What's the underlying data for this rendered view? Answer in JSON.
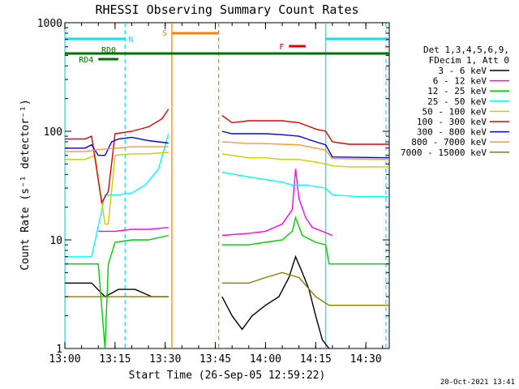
{
  "chart_data": {
    "type": "line",
    "title": "RHESSI Observing Summary Count Rates",
    "xlabel": "Start Time (26-Sep-05 12:59:22)",
    "ylabel": "Count Rate (s⁻¹ detector⁻¹)",
    "y_scale": "log",
    "ylim": [
      1,
      1000
    ],
    "xlim": [
      "13:00",
      "14:37"
    ],
    "x_ticks": [
      "13:00",
      "13:15",
      "13:30",
      "13:45",
      "14:00",
      "14:15",
      "14:30"
    ],
    "y_ticks": [
      "1",
      "10",
      "100",
      "1000"
    ],
    "footer_date": "20-Oct-2021 13:41",
    "legend_header": [
      "Det 1,3,4,5,6,9,",
      "FDecim 1, Att 0"
    ],
    "annotations": {
      "N": {
        "label": "N",
        "color": "#00e5ff",
        "segments": [
          [
            "13:00",
            "13:18"
          ],
          [
            "14:18",
            "14:37"
          ]
        ]
      },
      "S": {
        "label": "S",
        "color": "#ff7f00",
        "segments": [
          [
            "13:32",
            "13:46"
          ]
        ]
      },
      "F": {
        "label": "F",
        "color": "#e00000",
        "segments": [
          [
            "14:07",
            "14:12"
          ]
        ]
      },
      "RD0": {
        "label": "RD0",
        "color": "#007000",
        "segments": [
          [
            "13:00",
            "14:37"
          ]
        ]
      },
      "RD4": {
        "label": "RD4",
        "color": "#007000",
        "segments": [
          [
            "13:10",
            "13:16"
          ]
        ]
      }
    },
    "vlines": [
      {
        "time": "13:00",
        "color": "#00e5ff",
        "style": "solid"
      },
      {
        "time": "13:18",
        "color": "#00e5ff",
        "style": "dashed"
      },
      {
        "time": "13:32",
        "color": "#ff7f00",
        "style": "solid"
      },
      {
        "time": "13:46",
        "color": "#ff7f00",
        "style": "dashed"
      },
      {
        "time": "14:18",
        "color": "#00e5ff",
        "style": "solid"
      },
      {
        "time": "14:36",
        "color": "#00e5ff",
        "style": "dashed"
      }
    ],
    "series": [
      {
        "name": "3 - 6 keV",
        "color": "#000000",
        "points": [
          [
            "13:00",
            4
          ],
          [
            "13:08",
            4
          ],
          [
            "13:12",
            3
          ],
          [
            "13:16",
            3.5
          ],
          [
            "13:21",
            3.5
          ],
          [
            "13:26",
            3
          ],
          [
            "13:31",
            3
          ],
          null,
          [
            "13:47",
            3
          ],
          [
            "13:50",
            2
          ],
          [
            "13:53",
            1.5
          ],
          [
            "13:56",
            2
          ],
          [
            "14:00",
            2.5
          ],
          [
            "14:04",
            3
          ],
          [
            "14:07",
            4.5
          ],
          [
            "14:09",
            7
          ],
          [
            "14:11",
            5
          ],
          [
            "14:13",
            3.5
          ],
          [
            "14:15",
            2
          ],
          [
            "14:17",
            1.2
          ],
          [
            "14:19",
            1
          ]
        ]
      },
      {
        "name": "6 - 12 keV",
        "color": "#ff00ff",
        "points": [
          [
            "13:10",
            12
          ],
          [
            "13:15",
            12
          ],
          [
            "13:20",
            12.5
          ],
          [
            "13:25",
            12.5
          ],
          [
            "13:31",
            13
          ],
          null,
          [
            "13:47",
            11
          ],
          [
            "13:55",
            11.5
          ],
          [
            "14:00",
            12
          ],
          [
            "14:05",
            14
          ],
          [
            "14:08",
            19
          ],
          [
            "14:09",
            45
          ],
          [
            "14:10",
            24
          ],
          [
            "14:12",
            16
          ],
          [
            "14:14",
            13
          ],
          [
            "14:17",
            12
          ],
          [
            "14:20",
            11
          ]
        ]
      },
      {
        "name": "12 - 25 keV",
        "color": "#00cc00",
        "points": [
          [
            "13:00",
            6
          ],
          [
            "13:10",
            6
          ],
          [
            "13:12",
            1
          ],
          [
            "13:13",
            6
          ],
          [
            "13:15",
            9.5
          ],
          [
            "13:20",
            10
          ],
          [
            "13:25",
            10
          ],
          [
            "13:31",
            11
          ],
          null,
          [
            "13:47",
            9
          ],
          [
            "13:55",
            9
          ],
          [
            "14:00",
            9.5
          ],
          [
            "14:05",
            10
          ],
          [
            "14:08",
            12
          ],
          [
            "14:09",
            16
          ],
          [
            "14:11",
            11
          ],
          [
            "14:15",
            9.5
          ],
          [
            "14:18",
            9
          ],
          [
            "14:19",
            6
          ],
          [
            "14:25",
            6
          ],
          [
            "14:32",
            6
          ],
          [
            "14:37",
            6
          ]
        ]
      },
      {
        "name": "25 - 50 keV",
        "color": "#00ffff",
        "points": [
          [
            "13:00",
            7
          ],
          [
            "13:08",
            7
          ],
          [
            "13:12",
            26
          ],
          [
            "13:16",
            26
          ],
          [
            "13:20",
            27
          ],
          [
            "13:24",
            32
          ],
          [
            "13:28",
            45
          ],
          [
            "13:31",
            95
          ],
          null,
          [
            "13:47",
            42
          ],
          [
            "13:55",
            38
          ],
          [
            "14:00",
            36
          ],
          [
            "14:05",
            34
          ],
          [
            "14:08",
            32
          ],
          [
            "14:12",
            32
          ],
          [
            "14:18",
            30
          ],
          [
            "14:20",
            26
          ],
          [
            "14:28",
            25
          ],
          [
            "14:37",
            25
          ]
        ]
      },
      {
        "name": "50 - 100 keV",
        "color": "#cccc00",
        "points": [
          [
            "13:00",
            55
          ],
          [
            "13:06",
            55
          ],
          [
            "13:09",
            60
          ],
          [
            "13:12",
            14
          ],
          [
            "13:13",
            14
          ],
          [
            "13:15",
            60
          ],
          [
            "13:20",
            62
          ],
          [
            "13:25",
            62
          ],
          [
            "13:31",
            64
          ],
          null,
          [
            "13:47",
            62
          ],
          [
            "13:55",
            57
          ],
          [
            "14:00",
            57
          ],
          [
            "14:05",
            55
          ],
          [
            "14:10",
            55
          ],
          [
            "14:15",
            52
          ],
          [
            "14:18",
            50
          ],
          [
            "14:20",
            48
          ],
          [
            "14:25",
            47
          ],
          [
            "14:37",
            47
          ]
        ]
      },
      {
        "name": "100 - 300 keV",
        "color": "#e00000",
        "points": [
          [
            "13:00",
            85
          ],
          [
            "13:06",
            85
          ],
          [
            "13:08",
            90
          ],
          [
            "13:11",
            22
          ],
          [
            "13:13",
            28
          ],
          [
            "13:15",
            95
          ],
          [
            "13:20",
            100
          ],
          [
            "13:25",
            110
          ],
          [
            "13:29",
            130
          ],
          [
            "13:31",
            160
          ],
          null,
          [
            "13:47",
            140
          ],
          [
            "13:50",
            120
          ],
          [
            "13:55",
            125
          ],
          [
            "14:00",
            125
          ],
          [
            "14:05",
            125
          ],
          [
            "14:10",
            120
          ],
          [
            "14:15",
            105
          ],
          [
            "14:18",
            100
          ],
          [
            "14:20",
            80
          ],
          [
            "14:25",
            76
          ],
          [
            "14:37",
            76
          ]
        ]
      },
      {
        "name": "300 - 800 keV",
        "color": "#0000ff",
        "points": [
          [
            "13:00",
            70
          ],
          [
            "13:06",
            70
          ],
          [
            "13:08",
            75
          ],
          [
            "13:10",
            60
          ],
          [
            "13:12",
            60
          ],
          [
            "13:14",
            80
          ],
          [
            "13:16",
            85
          ],
          [
            "13:20",
            88
          ],
          [
            "13:25",
            82
          ],
          [
            "13:31",
            78
          ],
          null,
          [
            "13:47",
            100
          ],
          [
            "13:50",
            95
          ],
          [
            "13:55",
            95
          ],
          [
            "14:00",
            95
          ],
          [
            "14:05",
            93
          ],
          [
            "14:10",
            90
          ],
          [
            "14:15",
            80
          ],
          [
            "14:18",
            75
          ],
          [
            "14:20",
            58
          ],
          [
            "14:37",
            57
          ]
        ]
      },
      {
        "name": "800 - 7000 keV",
        "color": "#ff9933",
        "points": [
          [
            "13:00",
            65
          ],
          [
            "13:06",
            65
          ],
          [
            "13:10",
            68
          ],
          [
            "13:16",
            70
          ],
          [
            "13:20",
            72
          ],
          [
            "13:25",
            72
          ],
          [
            "13:31",
            72
          ],
          null,
          [
            "13:47",
            80
          ],
          [
            "13:50",
            79
          ],
          [
            "13:55",
            77
          ],
          [
            "14:00",
            77
          ],
          [
            "14:05",
            76
          ],
          [
            "14:10",
            75
          ],
          [
            "14:15",
            70
          ],
          [
            "14:18",
            67
          ],
          [
            "14:20",
            56
          ],
          [
            "14:37",
            55
          ]
        ]
      },
      {
        "name": "7000 - 15000 keV",
        "color": "#8b7d00",
        "points": [
          [
            "13:00",
            3
          ],
          [
            "13:08",
            3
          ],
          [
            "13:14",
            3
          ],
          [
            "13:20",
            3
          ],
          [
            "13:26",
            3
          ],
          [
            "13:31",
            3
          ],
          null,
          [
            "13:47",
            4
          ],
          [
            "13:55",
            4
          ],
          [
            "14:00",
            4.5
          ],
          [
            "14:05",
            5
          ],
          [
            "14:10",
            4.5
          ],
          [
            "14:15",
            3
          ],
          [
            "14:19",
            2.5
          ],
          [
            "14:25",
            2.5
          ],
          [
            "14:32",
            2.5
          ],
          [
            "14:37",
            2.5
          ]
        ]
      }
    ]
  }
}
